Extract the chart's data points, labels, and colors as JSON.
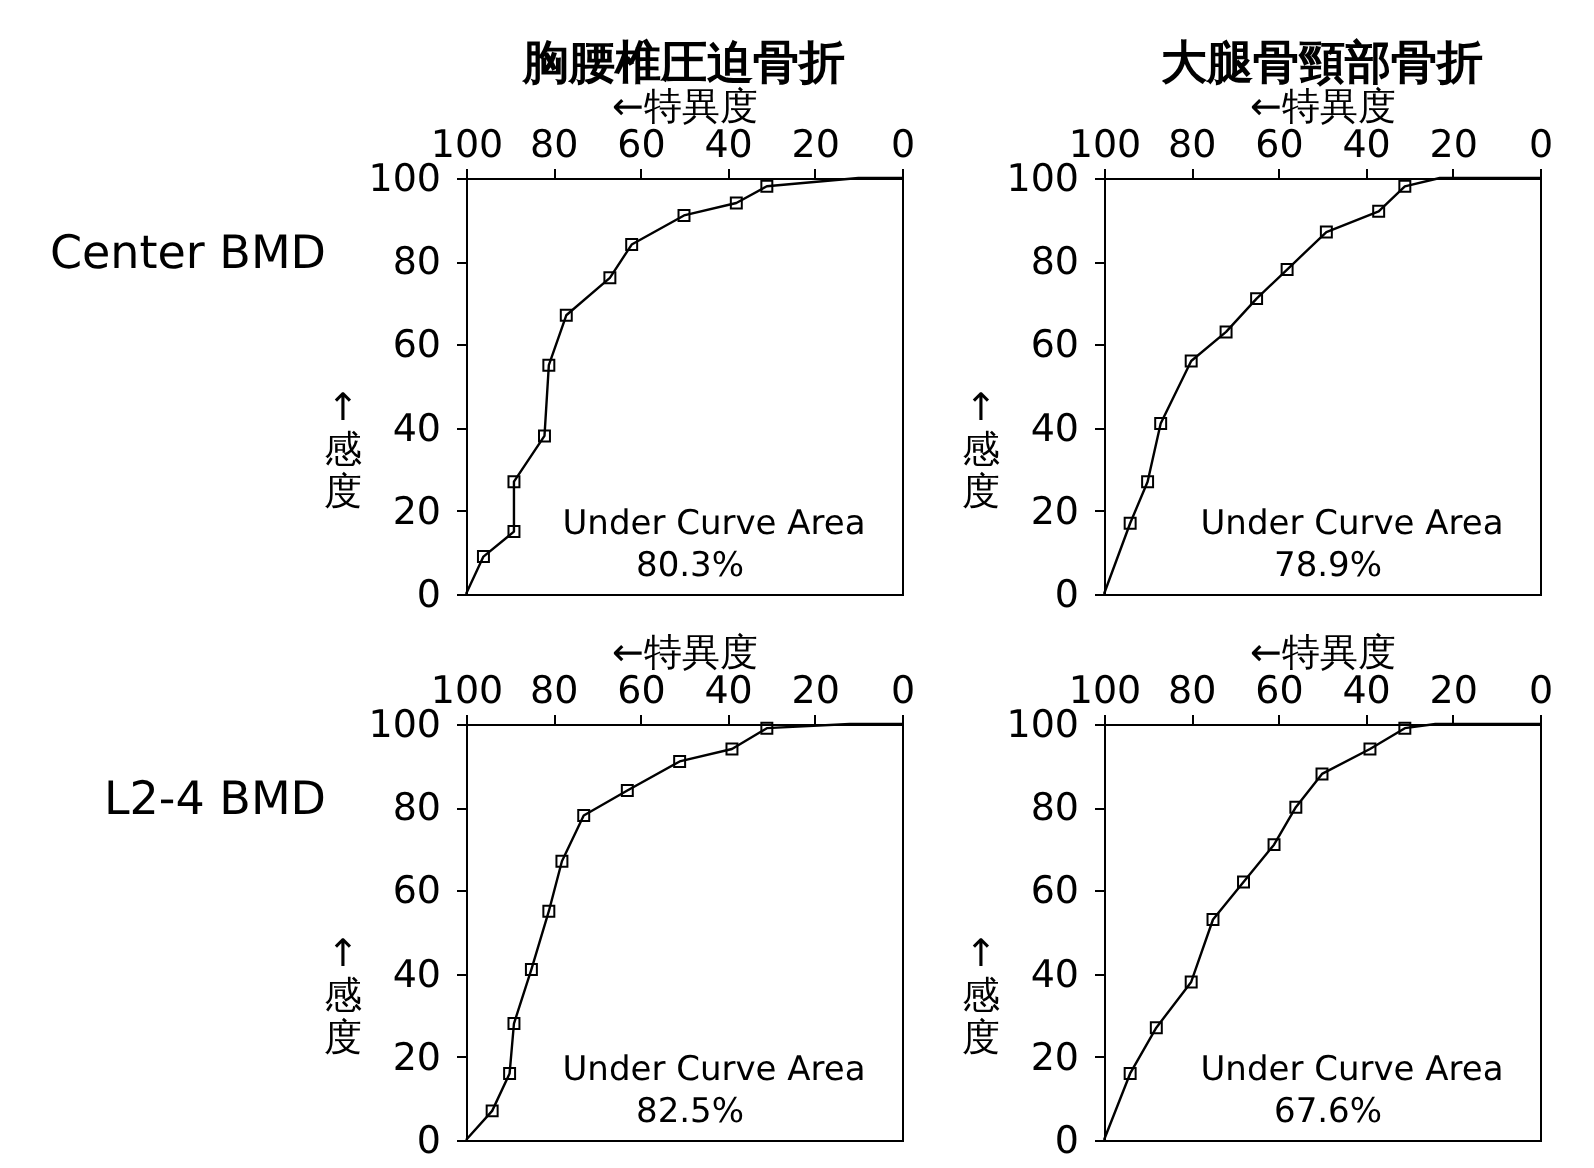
{
  "chart_data": [
    {
      "type": "line",
      "title": "胸腰椎圧迫骨折",
      "xlabel": "←特異度",
      "ylabel": "↑感度",
      "xlim": [
        100,
        0
      ],
      "xticks": [
        100,
        80,
        60,
        40,
        20,
        0
      ],
      "ylim": [
        0,
        100
      ],
      "yticks": [
        0,
        20,
        40,
        60,
        80,
        100
      ],
      "annotations": [
        "Center BMD",
        "Under Curve Area",
        "80.3%"
      ],
      "series": [
        {
          "type": "line",
          "color": "#000000",
          "x": [
            100,
            96,
            89,
            89,
            82,
            81,
            77,
            67,
            62,
            50,
            38,
            31,
            10,
            0
          ],
          "values": [
            0,
            9,
            15,
            27,
            38,
            55,
            67,
            76,
            84,
            91,
            94,
            98,
            100,
            100
          ]
        },
        {
          "type": "scatter",
          "marker": "square",
          "color": "#000000",
          "x": [
            96,
            89,
            89,
            82,
            81,
            77,
            67,
            62,
            50,
            38,
            31
          ],
          "values": [
            9,
            15,
            27,
            38,
            55,
            67,
            76,
            84,
            91,
            94,
            98
          ]
        }
      ]
    },
    {
      "type": "line",
      "title": "大腿骨頸部骨折",
      "xlabel": "←特異度",
      "ylabel": "↑感度",
      "xlim": [
        100,
        0
      ],
      "xticks": [
        100,
        80,
        60,
        40,
        20,
        0
      ],
      "ylim": [
        0,
        100
      ],
      "yticks": [
        0,
        20,
        40,
        60,
        80,
        100
      ],
      "annotations": [
        "Under Curve Area",
        "78.9%"
      ],
      "series": [
        {
          "type": "line",
          "color": "#000000",
          "x": [
            100,
            94,
            90,
            87,
            80,
            72,
            65,
            58,
            49,
            37,
            31,
            23,
            0
          ],
          "values": [
            0,
            17,
            27,
            41,
            56,
            63,
            71,
            78,
            87,
            92,
            98,
            100,
            100
          ]
        },
        {
          "type": "scatter",
          "marker": "square",
          "color": "#000000",
          "x": [
            94,
            90,
            87,
            80,
            72,
            65,
            58,
            49,
            37,
            31
          ],
          "values": [
            17,
            27,
            41,
            56,
            63,
            71,
            78,
            87,
            92,
            98
          ]
        }
      ]
    },
    {
      "type": "line",
      "xlabel": "←特異度",
      "ylabel": "↑感度",
      "xlim": [
        100,
        0
      ],
      "xticks": [
        100,
        80,
        60,
        40,
        20,
        0
      ],
      "ylim": [
        0,
        100
      ],
      "yticks": [
        0,
        20,
        40,
        60,
        80,
        100
      ],
      "annotations": [
        "L2-4 BMD",
        "Under Curve Area",
        "82.5%"
      ],
      "series": [
        {
          "type": "line",
          "color": "#000000",
          "x": [
            100,
            94,
            90,
            89,
            85,
            81,
            78,
            73,
            63,
            51,
            39,
            31,
            12,
            0
          ],
          "values": [
            0,
            7,
            16,
            28,
            41,
            55,
            67,
            78,
            84,
            91,
            94,
            99,
            100,
            100
          ]
        },
        {
          "type": "scatter",
          "marker": "square",
          "color": "#000000",
          "x": [
            94,
            90,
            89,
            85,
            81,
            78,
            73,
            63,
            51,
            39,
            31
          ],
          "values": [
            7,
            16,
            28,
            41,
            55,
            67,
            78,
            84,
            91,
            94,
            99
          ]
        }
      ]
    },
    {
      "type": "line",
      "xlabel": "←特異度",
      "ylabel": "↑感度",
      "xlim": [
        100,
        0
      ],
      "xticks": [
        100,
        80,
        60,
        40,
        20,
        0
      ],
      "ylim": [
        0,
        100
      ],
      "yticks": [
        0,
        20,
        40,
        60,
        80,
        100
      ],
      "annotations": [
        "Under Curve Area",
        "67.6%"
      ],
      "series": [
        {
          "type": "line",
          "color": "#000000",
          "x": [
            100,
            94,
            88,
            80,
            75,
            68,
            61,
            56,
            50,
            39,
            31,
            24,
            0
          ],
          "values": [
            0,
            16,
            27,
            38,
            53,
            62,
            71,
            80,
            88,
            94,
            99,
            100,
            100
          ]
        },
        {
          "type": "scatter",
          "marker": "square",
          "color": "#000000",
          "x": [
            94,
            88,
            80,
            75,
            68,
            61,
            56,
            50,
            39,
            31
          ],
          "values": [
            16,
            27,
            38,
            53,
            62,
            71,
            80,
            88,
            94,
            99
          ]
        }
      ]
    }
  ]
}
